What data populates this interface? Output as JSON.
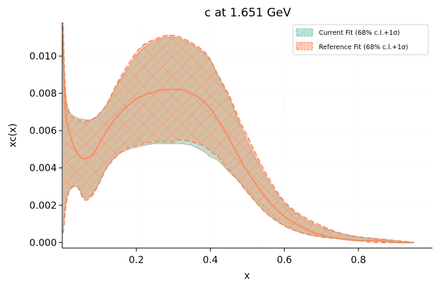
{
  "chart_data": {
    "type": "area",
    "title": "c at 1.651 GeV",
    "xlabel": "x",
    "ylabel": "xc(x)",
    "xlim": [
      0.0,
      1.0
    ],
    "ylim": [
      -0.0003,
      0.0118
    ],
    "xticks": [
      0.2,
      0.4,
      0.6,
      0.8
    ],
    "xtick_labels": [
      "0.2",
      "0.4",
      "0.6",
      "0.8"
    ],
    "yticks": [
      0.0,
      0.002,
      0.004,
      0.006,
      0.008,
      0.01
    ],
    "ytick_labels": [
      "0.000",
      "0.002",
      "0.004",
      "0.006",
      "0.008",
      "0.010"
    ],
    "grid": true,
    "legend_position": "top-right",
    "x": [
      0.002,
      0.005,
      0.01,
      0.02,
      0.04,
      0.06,
      0.08,
      0.1,
      0.12,
      0.15,
      0.18,
      0.2,
      0.22,
      0.25,
      0.28,
      0.3,
      0.32,
      0.35,
      0.38,
      0.4,
      0.42,
      0.45,
      0.48,
      0.5,
      0.55,
      0.6,
      0.65,
      0.7,
      0.75,
      0.8,
      0.85,
      0.9,
      0.95
    ],
    "series": [
      {
        "name": "Current Fit (68% c.l.+1σ)",
        "color": "#66c2a5",
        "upper": [
          0.0118,
          0.0095,
          0.0078,
          0.007,
          0.0067,
          0.0066,
          0.0066,
          0.0069,
          0.0074,
          0.0085,
          0.0094,
          0.01,
          0.0104,
          0.0108,
          0.011,
          0.011,
          0.0109,
          0.0106,
          0.0102,
          0.0098,
          0.009,
          0.0078,
          0.0063,
          0.0054,
          0.0035,
          0.0021,
          0.0013,
          0.0008,
          0.0005,
          0.0003,
          0.0002,
          0.0001,
          0.0
        ],
        "lower": [
          0.0008,
          0.0012,
          0.0022,
          0.0028,
          0.003,
          0.0024,
          0.0026,
          0.0032,
          0.004,
          0.0047,
          0.005,
          0.0051,
          0.0052,
          0.0053,
          0.0053,
          0.0053,
          0.0053,
          0.0052,
          0.0049,
          0.0046,
          0.0044,
          0.0038,
          0.0032,
          0.0027,
          0.0016,
          0.0009,
          0.0005,
          0.0003,
          0.0002,
          0.0001,
          0.0001,
          0.0,
          0.0
        ]
      },
      {
        "name": "Reference Fit (68% c.l.+1σ)",
        "color": "#fc8d62",
        "central": [
          0.011,
          0.0085,
          0.0068,
          0.0058,
          0.0048,
          0.0045,
          0.0047,
          0.0053,
          0.006,
          0.0068,
          0.0074,
          0.0077,
          0.0079,
          0.0081,
          0.0082,
          0.0082,
          0.0082,
          0.008,
          0.0076,
          0.0072,
          0.0066,
          0.0056,
          0.0045,
          0.0038,
          0.0024,
          0.0014,
          0.0008,
          0.0004,
          0.0002,
          0.0001,
          0.0001,
          0.0,
          0.0
        ],
        "upper": [
          0.012,
          0.0097,
          0.0077,
          0.0069,
          0.0066,
          0.0065,
          0.0066,
          0.0069,
          0.0074,
          0.0086,
          0.0096,
          0.0102,
          0.0106,
          0.0109,
          0.0111,
          0.0111,
          0.011,
          0.0107,
          0.0103,
          0.0098,
          0.009,
          0.0079,
          0.0065,
          0.0057,
          0.0037,
          0.0022,
          0.0014,
          0.0009,
          0.0005,
          0.0003,
          0.0002,
          0.0001,
          0.0
        ],
        "lower": [
          0.0005,
          0.001,
          0.002,
          0.0028,
          0.003,
          0.0023,
          0.0025,
          0.0032,
          0.004,
          0.0047,
          0.0051,
          0.0052,
          0.0053,
          0.0054,
          0.0054,
          0.0054,
          0.0055,
          0.0054,
          0.0052,
          0.0049,
          0.0046,
          0.0039,
          0.0032,
          0.0027,
          0.0016,
          0.0009,
          0.0005,
          0.0003,
          0.0002,
          0.0001,
          0.0,
          0.0,
          0.0
        ]
      }
    ]
  }
}
